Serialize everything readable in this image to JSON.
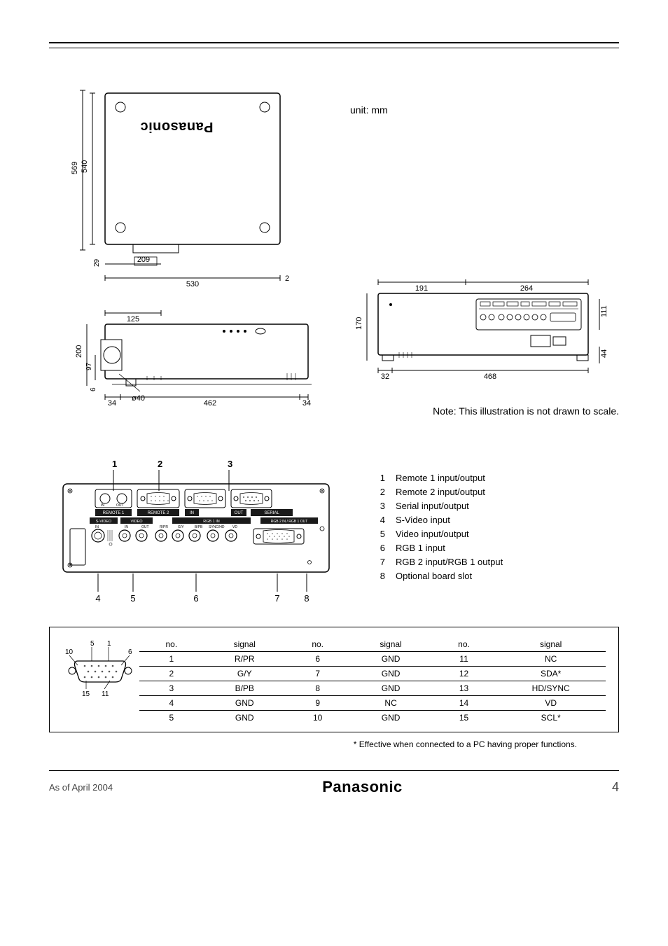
{
  "header": {
    "unit_label": "unit: mm",
    "note": "Note: This illustration is not drawn to scale.",
    "brand": "Panasonic"
  },
  "dimensions": {
    "top_view": {
      "outer_height": "569",
      "inner_height": "540",
      "lens_offset": "209",
      "width": "530",
      "gap_small_left": "29",
      "gap_small_right": "2"
    },
    "side_view": {
      "lens_diameter": "ø40",
      "front_offset": "125",
      "height": "200",
      "lens_center_height": "97",
      "foot_height": "6",
      "edge_left": "34",
      "body_length": "462",
      "edge_right": "34"
    },
    "rear_view": {
      "left_section": "191",
      "right_section": "264",
      "height": "170",
      "panel_height": "111",
      "foot_height": "44",
      "edge_left": "32",
      "body_width": "468"
    }
  },
  "terminals": {
    "items": [
      {
        "num": "1",
        "label": "Remote 1 input/output"
      },
      {
        "num": "2",
        "label": "Remote 2 input/output"
      },
      {
        "num": "3",
        "label": "Serial input/output"
      },
      {
        "num": "4",
        "label": "S-Video input"
      },
      {
        "num": "5",
        "label": "Video input/output"
      },
      {
        "num": "6",
        "label": "RGB 1 input"
      },
      {
        "num": "7",
        "label": "RGB 2 input/RGB 1 output"
      },
      {
        "num": "8",
        "label": "Optional board slot"
      }
    ],
    "panel_labels": {
      "remote1": "REMOTE 1",
      "remote2": "REMOTE 2",
      "serial": "SERIAL",
      "svideo": "S-VIDEO",
      "video": "VIDEO",
      "rgb1in": "RGB 1 IN",
      "rgb2": "RGB 2 IN / RGB 1 OUT",
      "in": "IN",
      "out": "OUT",
      "rpr": "R/PR",
      "gy": "G/Y",
      "bpb": "B/PB",
      "synchd": "SYNC/HD",
      "vd": "VD"
    },
    "callout_top": [
      "1",
      "2",
      "3"
    ],
    "callout_bottom": [
      "4",
      "5",
      "6",
      "7",
      "8"
    ]
  },
  "pin_table": {
    "pin_labels": {
      "p10": "10",
      "p5": "5",
      "p1": "1",
      "p6": "6",
      "p15": "15",
      "p11": "11"
    },
    "headers": [
      "no.",
      "signal",
      "no.",
      "signal",
      "no.",
      "signal"
    ],
    "rows": [
      [
        "1",
        "R/PR",
        "6",
        "GND",
        "11",
        "NC"
      ],
      [
        "2",
        "G/Y",
        "7",
        "GND",
        "12",
        "SDA*"
      ],
      [
        "3",
        "B/PB",
        "8",
        "GND",
        "13",
        "HD/SYNC"
      ],
      [
        "4",
        "GND",
        "9",
        "NC",
        "14",
        "VD"
      ],
      [
        "5",
        "GND",
        "10",
        "GND",
        "15",
        "SCL*"
      ]
    ],
    "footnote": "*  Effective when connected to a PC having proper functions."
  },
  "footer": {
    "date": "As of April 2004",
    "brand": "Panasonic",
    "page": "4"
  },
  "style": {
    "border_color": "#000000",
    "text_color": "#000000",
    "muted_color": "#555555",
    "background": "#ffffff"
  }
}
